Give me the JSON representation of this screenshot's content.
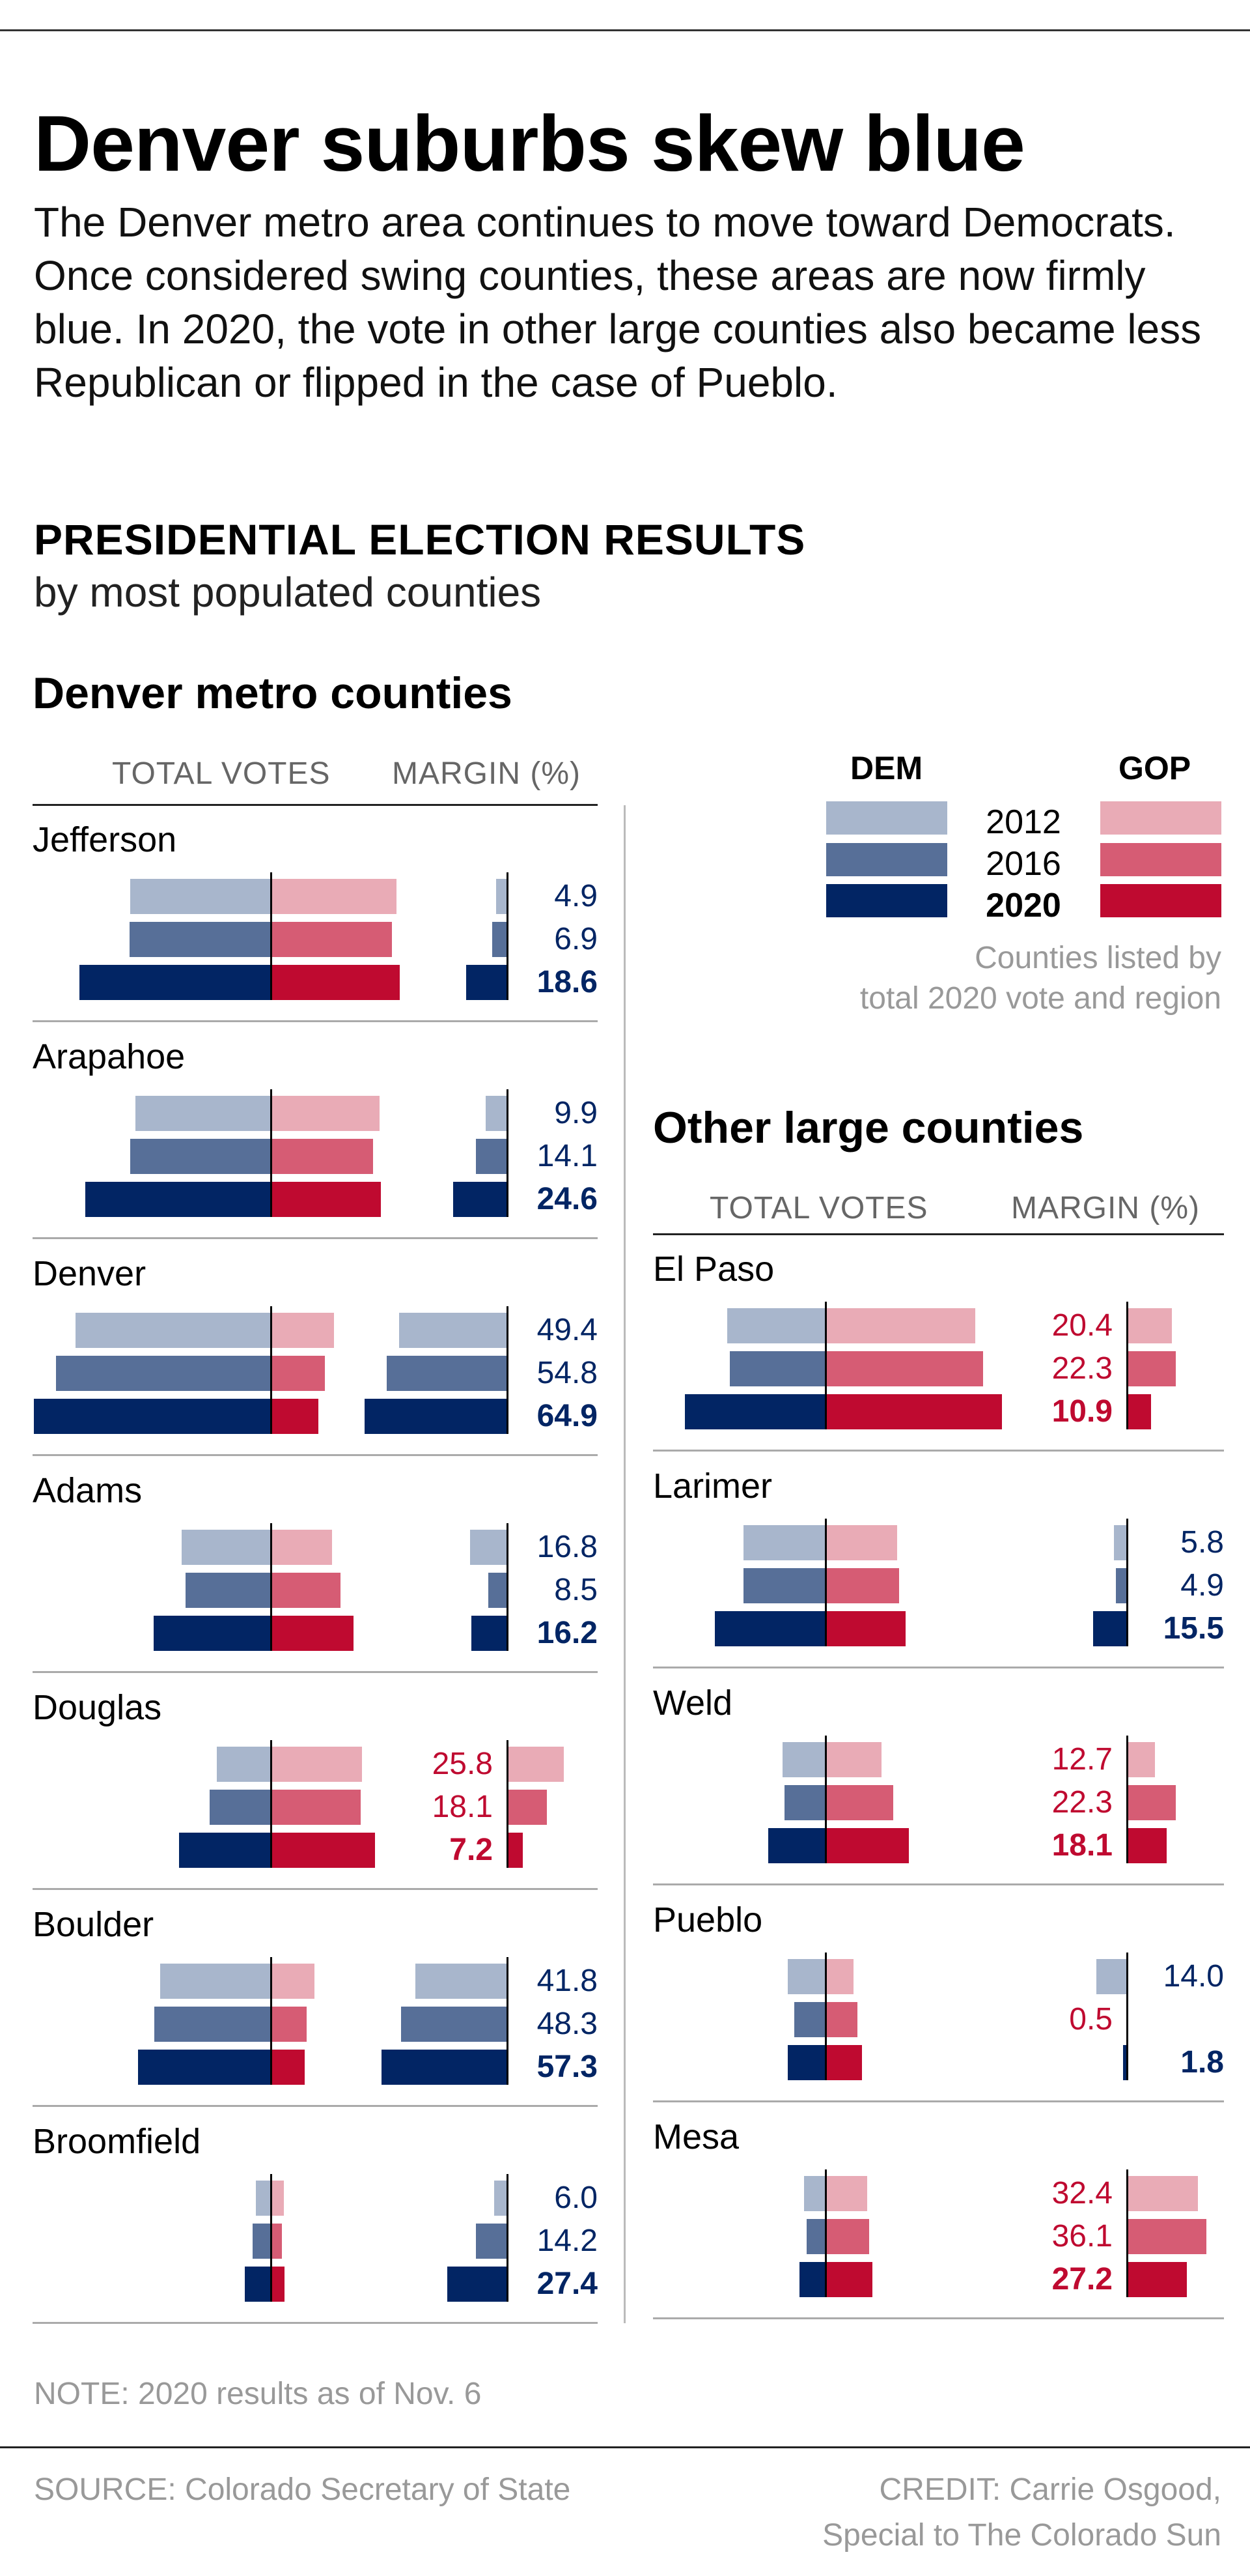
{
  "title": "Denver suburbs skew blue",
  "intro": "The Denver metro area continues to move toward Democrats. Once considered swing counties, these areas are now firmly blue. In 2020, the vote in other large counties also became less Republican or flipped in the case of Pueblo.",
  "kicker": "PRESIDENTIAL ELECTION RESULTS",
  "kicker_sub": "by most populated counties",
  "colors": {
    "dem": {
      "2012": "#a8b6cc",
      "2016": "#576f98",
      "2020": "#022564"
    },
    "gop": {
      "2012": "#e9abb6",
      "2016": "#d65c74",
      "2020": "#bf0a30"
    },
    "dem_text": "#022564",
    "gop_text": "#bf0a30"
  },
  "legend": {
    "dem_label": "DEM",
    "gop_label": "GOP",
    "years": [
      "2012",
      "2016",
      "2020"
    ],
    "note_line1": "Counties listed by",
    "note_line2": "total 2020 vote and region"
  },
  "columns": {
    "total_votes": "TOTAL VOTES",
    "margin": "MARGIN (%)"
  },
  "sections": [
    {
      "title": "Denver metro counties"
    },
    {
      "title": "Other large counties"
    }
  ],
  "chart_data": {
    "type": "bar",
    "title": "PRESIDENTIAL ELECTION RESULTS",
    "subtitle": "by most populated counties",
    "years": [
      "2012",
      "2016",
      "2020"
    ],
    "units": {
      "votes": "thousands (estimated from bar length)",
      "margin": "percentage points"
    },
    "groups": [
      {
        "name": "Denver metro counties",
        "counties": [
          {
            "name": "Jefferson",
            "dem_votes": [
              186,
              187,
              253
            ],
            "gop_votes": [
              166,
              160,
              170
            ],
            "margin": [
              {
                "party": "DEM",
                "value": "4.9"
              },
              {
                "party": "DEM",
                "value": "6.9"
              },
              {
                "party": "DEM",
                "value": "18.6"
              }
            ]
          },
          {
            "name": "Arapahoe",
            "dem_votes": [
              179,
              186,
              245
            ],
            "gop_votes": [
              144,
              135,
              145
            ],
            "margin": [
              {
                "party": "DEM",
                "value": "9.9"
              },
              {
                "party": "DEM",
                "value": "14.1"
              },
              {
                "party": "DEM",
                "value": "24.6"
              }
            ]
          },
          {
            "name": "Denver",
            "dem_votes": [
              258,
              284,
              313
            ],
            "gop_votes": [
              83,
              71,
              63
            ],
            "margin": [
              {
                "party": "DEM",
                "value": "49.4"
              },
              {
                "party": "DEM",
                "value": "54.8"
              },
              {
                "party": "DEM",
                "value": "64.9"
              }
            ]
          },
          {
            "name": "Adams",
            "dem_votes": [
              118,
              113,
              155
            ],
            "gop_votes": [
              81,
              92,
              109
            ],
            "margin": [
              {
                "party": "DEM",
                "value": "16.8"
              },
              {
                "party": "DEM",
                "value": "8.5"
              },
              {
                "party": "DEM",
                "value": "16.2"
              }
            ]
          },
          {
            "name": "Douglas",
            "dem_votes": [
              71,
              81,
              121
            ],
            "gop_votes": [
              120,
              119,
              138
            ],
            "margin": [
              {
                "party": "GOP",
                "value": "25.8"
              },
              {
                "party": "GOP",
                "value": "18.1"
              },
              {
                "party": "GOP",
                "value": "7.2"
              }
            ]
          },
          {
            "name": "Boulder",
            "dem_votes": [
              146,
              154,
              175
            ],
            "gop_votes": [
              58,
              47,
              45
            ],
            "margin": [
              {
                "party": "DEM",
                "value": "41.8"
              },
              {
                "party": "DEM",
                "value": "48.3"
              },
              {
                "party": "DEM",
                "value": "57.3"
              }
            ]
          },
          {
            "name": "Broomfield",
            "dem_votes": [
              20,
              24,
              34
            ],
            "gop_votes": [
              17,
              15,
              18
            ],
            "margin": [
              {
                "party": "DEM",
                "value": "6.0"
              },
              {
                "party": "DEM",
                "value": "14.2"
              },
              {
                "party": "DEM",
                "value": "27.4"
              }
            ]
          }
        ]
      },
      {
        "name": "Other large counties",
        "counties": [
          {
            "name": "El Paso",
            "dem_votes": [
              130,
              126,
              186
            ],
            "gop_votes": [
              198,
              208,
              233
            ],
            "margin": [
              {
                "party": "GOP",
                "value": "20.4"
              },
              {
                "party": "GOP",
                "value": "22.3"
              },
              {
                "party": "GOP",
                "value": "10.9"
              }
            ]
          },
          {
            "name": "Larimer",
            "dem_votes": [
              108,
              108,
              146
            ],
            "gop_votes": [
              95,
              97,
              106
            ],
            "margin": [
              {
                "party": "DEM",
                "value": "5.8"
              },
              {
                "party": "DEM",
                "value": "4.9"
              },
              {
                "party": "DEM",
                "value": "15.5"
              }
            ]
          },
          {
            "name": "Weld",
            "dem_votes": [
              57,
              54,
              76
            ],
            "gop_votes": [
              74,
              89,
              110
            ],
            "margin": [
              {
                "party": "GOP",
                "value": "12.7"
              },
              {
                "party": "GOP",
                "value": "22.3"
              },
              {
                "party": "GOP",
                "value": "18.1"
              }
            ]
          },
          {
            "name": "Pueblo",
            "dem_votes": [
              50,
              41,
              50
            ],
            "gop_votes": [
              37,
              42,
              48
            ],
            "margin": [
              {
                "party": "DEM",
                "value": "14.0"
              },
              {
                "party": "GOP",
                "value": "0.5"
              },
              {
                "party": "DEM",
                "value": "1.8"
              }
            ]
          },
          {
            "name": "Mesa",
            "dem_votes": [
              28,
              25,
              34
            ],
            "gop_votes": [
              55,
              58,
              62
            ],
            "margin": [
              {
                "party": "GOP",
                "value": "32.4"
              },
              {
                "party": "GOP",
                "value": "36.1"
              },
              {
                "party": "GOP",
                "value": "27.2"
              }
            ]
          }
        ]
      }
    ]
  },
  "footer": {
    "note": "NOTE: 2020 results as of Nov. 6",
    "source": "SOURCE: Colorado Secretary of State",
    "credit_line1": "CREDIT: Carrie Osgood,",
    "credit_line2": "Special to The Colorado Sun"
  }
}
